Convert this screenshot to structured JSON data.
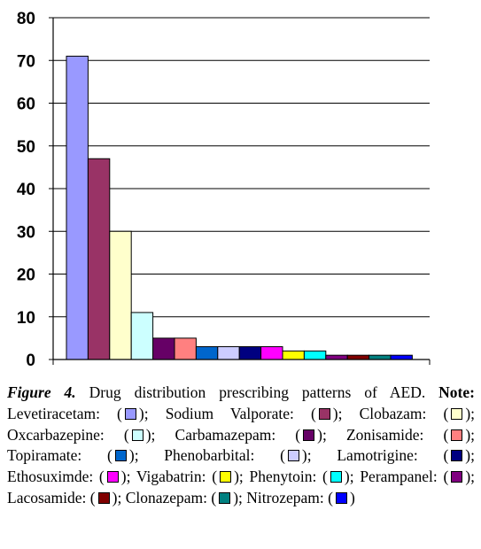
{
  "chart_data": {
    "type": "bar",
    "categories": [
      "Levetiracetam",
      "Sodium Valporate",
      "Clobazam",
      "Oxcarbazepine",
      "Carbamazepam",
      "Zonisamide",
      "Topiramate",
      "Phenobarbital",
      "Lamotrigine",
      "Ethosuximde",
      "Vigabatrin",
      "Phenytoin",
      "Perampanel",
      "Lacosamide",
      "Clonazepam",
      "Nitrozepam"
    ],
    "values": [
      71,
      47,
      30,
      11,
      5,
      5,
      3,
      3,
      3,
      3,
      2,
      2,
      1,
      1,
      1,
      1
    ],
    "colors": [
      "#9999ff",
      "#993366",
      "#ffffcc",
      "#ccffff",
      "#660066",
      "#ff8080",
      "#0066cc",
      "#ccccff",
      "#000080",
      "#ff00ff",
      "#ffff00",
      "#00ffff",
      "#800080",
      "#800000",
      "#008080",
      "#0000ff"
    ],
    "yticks": [
      0,
      10,
      20,
      30,
      40,
      50,
      60,
      70,
      80
    ],
    "ylim": [
      0,
      80
    ],
    "grid": true,
    "legend": "caption below chart"
  },
  "caption": {
    "lead": "Figure 4.",
    "text": " Drug distribution prescribing patterns of AED. ",
    "note": "Note:"
  },
  "legend_entries": [
    {
      "label": "Levetiracetam:",
      "sep": ";"
    },
    {
      "label": "Sodium Valporate:",
      "sep": ";"
    },
    {
      "label": "Clobazam:",
      "sep": ";"
    },
    {
      "label": "Oxcarbazepine:",
      "sep": ";"
    },
    {
      "label": "Carbamazepam:",
      "sep": ";"
    },
    {
      "label": "Zonisamide:",
      "sep": ";"
    },
    {
      "label": "Topiramate:",
      "sep": ";"
    },
    {
      "label": "Phenobarbital:",
      "sep": ";"
    },
    {
      "label": "Lamotrigine:",
      "sep": ";"
    },
    {
      "label": "Ethosuximde:",
      "sep": ";"
    },
    {
      "label": "Vigabatrin:",
      "sep": ";"
    },
    {
      "label": "Phenytoin:",
      "sep": ";"
    },
    {
      "label": "Perampanel:",
      "sep": ";"
    },
    {
      "label": "Lacosamide:",
      "sep": ";"
    },
    {
      "label": "Clonazepam:",
      "sep": ";"
    },
    {
      "label": "Nitrozepam:",
      "sep": ""
    }
  ]
}
